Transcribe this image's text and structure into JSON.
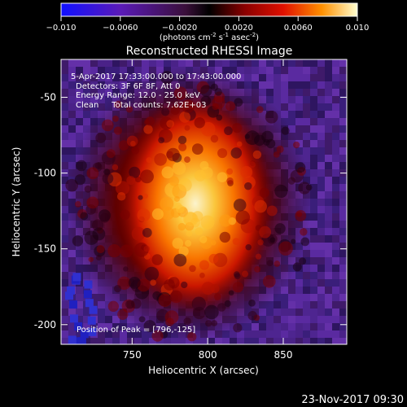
{
  "chart_data": {
    "type": "heatmap",
    "title": "Reconstructed RHESSI Image",
    "xlabel": "Heliocentric X (arcsec)",
    "ylabel": "Heliocentric Y (arcsec)",
    "xlim": [
      703,
      892
    ],
    "ylim": [
      -213,
      -25
    ],
    "x_ticks": [
      750,
      800,
      850
    ],
    "y_ticks": [
      -50,
      -100,
      -150,
      -200
    ],
    "colorbar": {
      "label_main": "(photons cm",
      "sup1": "-2",
      "mid1": " s",
      "sup2": "-1",
      "mid2": " asec",
      "sup3": "-2",
      "label_end": ")",
      "range": [
        -0.01,
        0.01
      ],
      "ticks": [
        {
          "value": -0.01,
          "label": "−0.010"
        },
        {
          "value": -0.006,
          "label": "−0.0060"
        },
        {
          "value": -0.002,
          "label": "−0.0020"
        },
        {
          "value": 0.002,
          "label": "0.0020"
        },
        {
          "value": 0.006,
          "label": "0.0060"
        },
        {
          "value": 0.01,
          "label": "0.010"
        }
      ]
    },
    "annotations": {
      "time_range": "5-Apr-2017 17:33:00.000 to 17:43:00.000",
      "detectors": "Detectors: 3F 6F 8F, Att 0",
      "energy": "Energy Range: 12.0 - 25.0 keV",
      "clean": "Clean     Total counts: 7.62E+03",
      "peak": "Position of Peak = [796,-125]"
    },
    "peak": {
      "x": 796,
      "y": -125
    }
  },
  "footer": {
    "timestamp": "23-Nov-2017 09:30"
  }
}
